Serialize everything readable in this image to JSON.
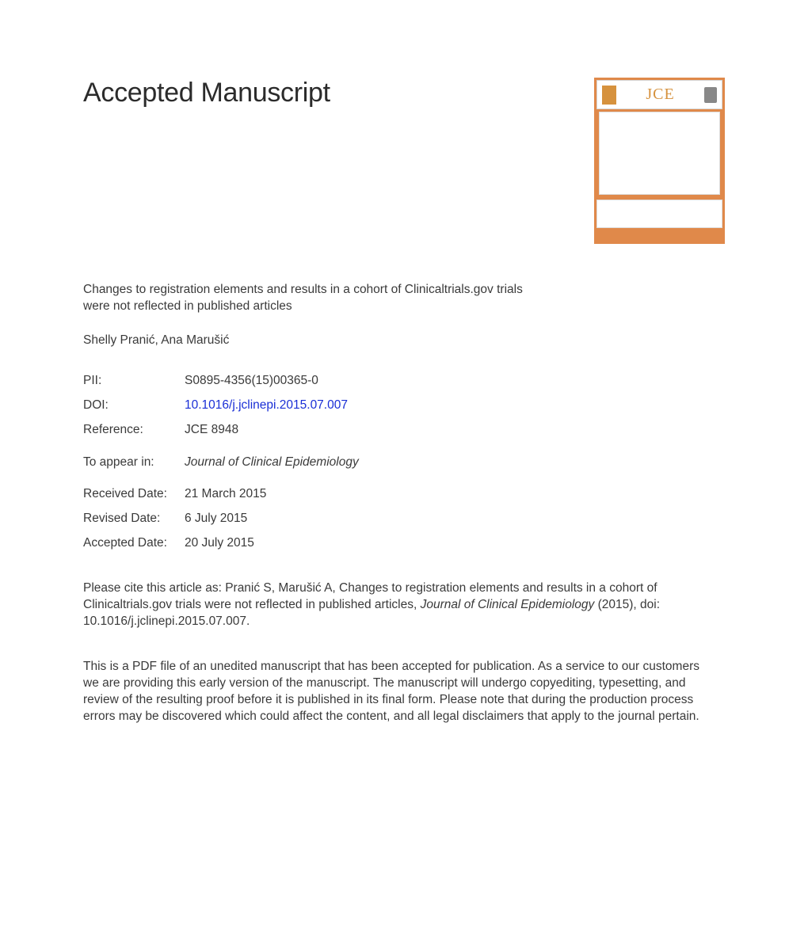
{
  "heading": "Accepted Manuscript",
  "cover": {
    "jce_text": "JCE",
    "accent_color": "#e0894a"
  },
  "article_title": "Changes to registration elements and results in a cohort of Clinicaltrials.gov trials were not reflected in published articles",
  "authors": "Shelly Pranić, Ana Marušić",
  "meta": {
    "pii_label": "PII:",
    "pii_value": "S0895-4356(15)00365-0",
    "doi_label": "DOI:",
    "doi_value": "10.1016/j.jclinepi.2015.07.007",
    "reference_label": "Reference:",
    "reference_value": "JCE 8948",
    "appear_label": "To appear in:",
    "appear_value": "Journal of Clinical Epidemiology",
    "received_label": "Received Date:",
    "received_value": "21 March 2015",
    "revised_label": "Revised Date:",
    "revised_value": "6 July 2015",
    "accepted_label": "Accepted Date:",
    "accepted_value": "20 July 2015"
  },
  "citation": {
    "prefix": "Please cite this article as: Pranić S, Marušić A, Changes to registration elements and results in a cohort of Clinicaltrials.gov trials were not reflected in published articles, ",
    "journal": "Journal of Clinical Epidemiology",
    "suffix": " (2015), doi: 10.1016/j.jclinepi.2015.07.007."
  },
  "disclaimer": "This is a PDF file of an unedited manuscript that has been accepted for publication. As a service to our customers we are providing this early version of the manuscript. The manuscript will undergo copyediting, typesetting, and review of the resulting proof before it is published in its final form. Please note that during the production process errors may be discovered which could affect the content, and all legal disclaimers that apply to the journal pertain."
}
